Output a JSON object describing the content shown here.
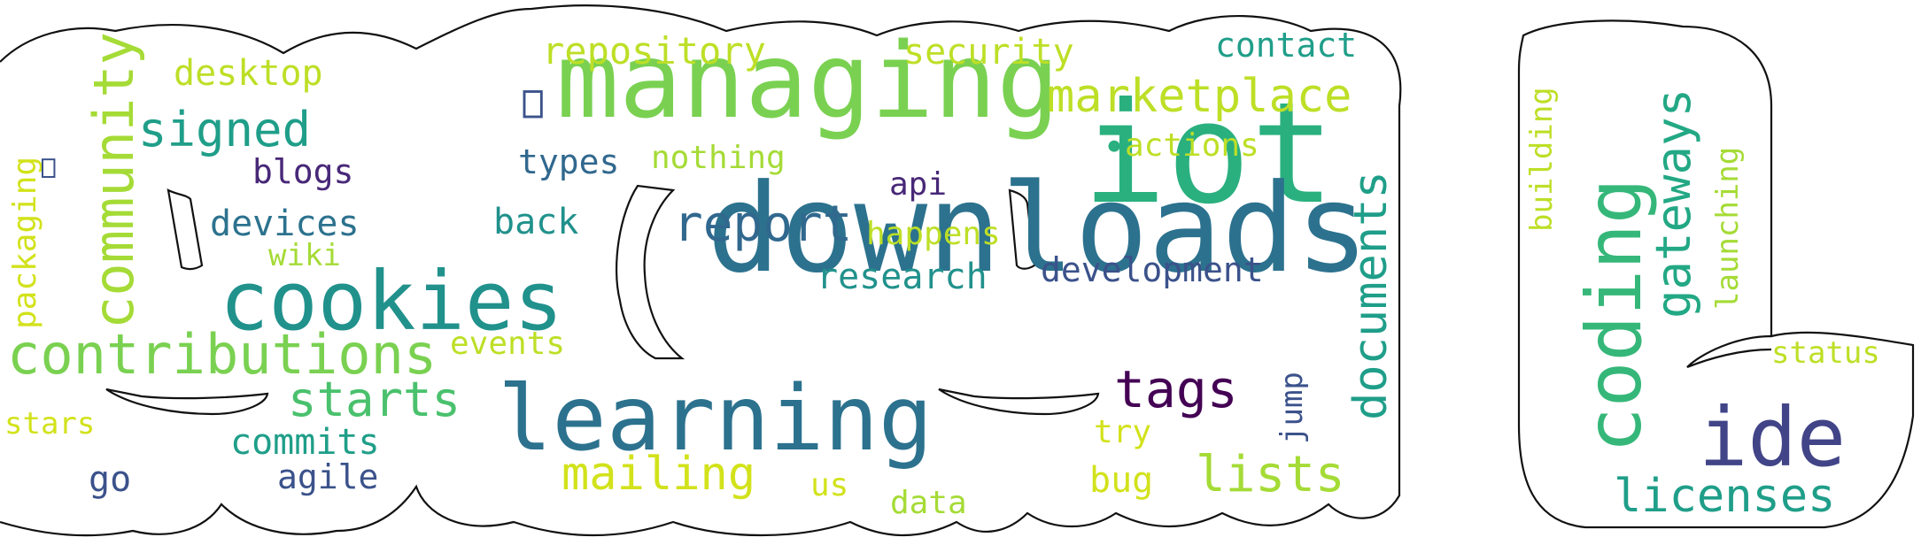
{
  "words": [
    {
      "text": "managing",
      "color": "#7ad151"
    },
    {
      "text": "iot",
      "color": "#2ab07f"
    },
    {
      "text": "downloads",
      "color": "#2c728e"
    },
    {
      "text": "cookies",
      "color": "#21918c"
    },
    {
      "text": "learning",
      "color": "#2c728e"
    },
    {
      "text": "contributions",
      "color": "#7ad151"
    },
    {
      "text": "community",
      "color": "#a5db36"
    },
    {
      "text": "coding",
      "color": "#35b779"
    },
    {
      "text": "ide",
      "color": "#414487"
    },
    {
      "text": "marketplace",
      "color": "#bddf26"
    },
    {
      "text": "signed",
      "color": "#1f9e89"
    },
    {
      "text": "report",
      "color": "#31688e"
    },
    {
      "text": "starts",
      "color": "#4ac16d"
    },
    {
      "text": "mailing",
      "color": "#d2e21b"
    },
    {
      "text": "tags",
      "color": "#440154"
    },
    {
      "text": "lists",
      "color": "#a5db36"
    },
    {
      "text": "documents",
      "color": "#1f9e89"
    },
    {
      "text": "gateways",
      "color": "#22a884"
    },
    {
      "text": "licenses",
      "color": "#1f9e89"
    },
    {
      "text": "repository",
      "color": "#bddf26"
    },
    {
      "text": "security",
      "color": "#bddf26"
    },
    {
      "text": "contact",
      "color": "#1f9e89"
    },
    {
      "text": "desktop",
      "color": "#bddf26"
    },
    {
      "text": "blogs",
      "color": "#482878"
    },
    {
      "text": "devices",
      "color": "#2c728e"
    },
    {
      "text": "wiki",
      "color": "#a5db36"
    },
    {
      "text": "packaging",
      "color": "#d2e21b"
    },
    {
      "text": "types",
      "color": "#31688e"
    },
    {
      "text": "nothing",
      "color": "#a5db36"
    },
    {
      "text": "actions",
      "color": "#bddf26"
    },
    {
      "text": "api",
      "color": "#482878"
    },
    {
      "text": "back",
      "color": "#21918c"
    },
    {
      "text": "happens",
      "color": "#bddf26"
    },
    {
      "text": "research",
      "color": "#21918c"
    },
    {
      "text": "development",
      "color": "#3b528b"
    },
    {
      "text": "events",
      "color": "#bddf26"
    },
    {
      "text": "commits",
      "color": "#1f9e89"
    },
    {
      "text": "agile",
      "color": "#3b528b"
    },
    {
      "text": "stars",
      "color": "#d2e21b"
    },
    {
      "text": "go",
      "color": "#3b528b"
    },
    {
      "text": "try",
      "color": "#d2e21b"
    },
    {
      "text": "jump",
      "color": "#3b528b"
    },
    {
      "text": "us",
      "color": "#d2e21b"
    },
    {
      "text": "data",
      "color": "#a5db36"
    },
    {
      "text": "bug",
      "color": "#d2e21b"
    },
    {
      "text": "building",
      "color": "#bddf26"
    },
    {
      "text": "launching",
      "color": "#a5db36"
    },
    {
      "text": "status",
      "color": "#bddf26"
    },
    {
      "text": "",
      "color": "#3b528b",
      "glyph": "replacement-box"
    },
    {
      "text": "",
      "color": "#3b528b",
      "glyph": "replacement-box"
    },
    {
      "text": "",
      "color": "#2ab07f",
      "glyph": "dot"
    }
  ]
}
